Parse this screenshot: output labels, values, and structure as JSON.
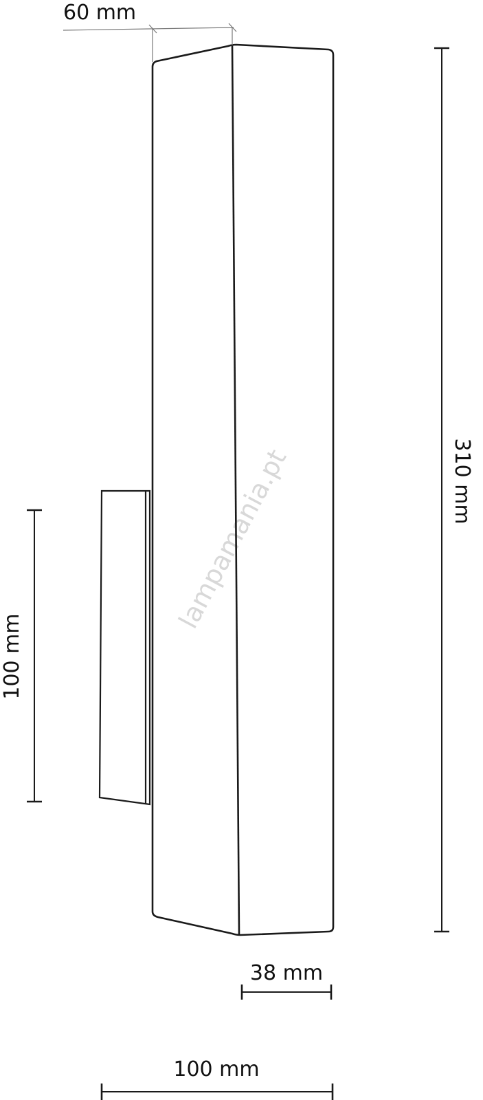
{
  "dimensions": {
    "depth_top": "60 mm",
    "height_total": "310 mm",
    "bracket_height": "100 mm",
    "front_width": "38 mm",
    "total_depth": "100 mm"
  },
  "watermark": "lampamania.pt",
  "colors": {
    "line": "#1a1a1a",
    "dimension_thin": "#777777",
    "watermark": "#d8d8d8"
  }
}
